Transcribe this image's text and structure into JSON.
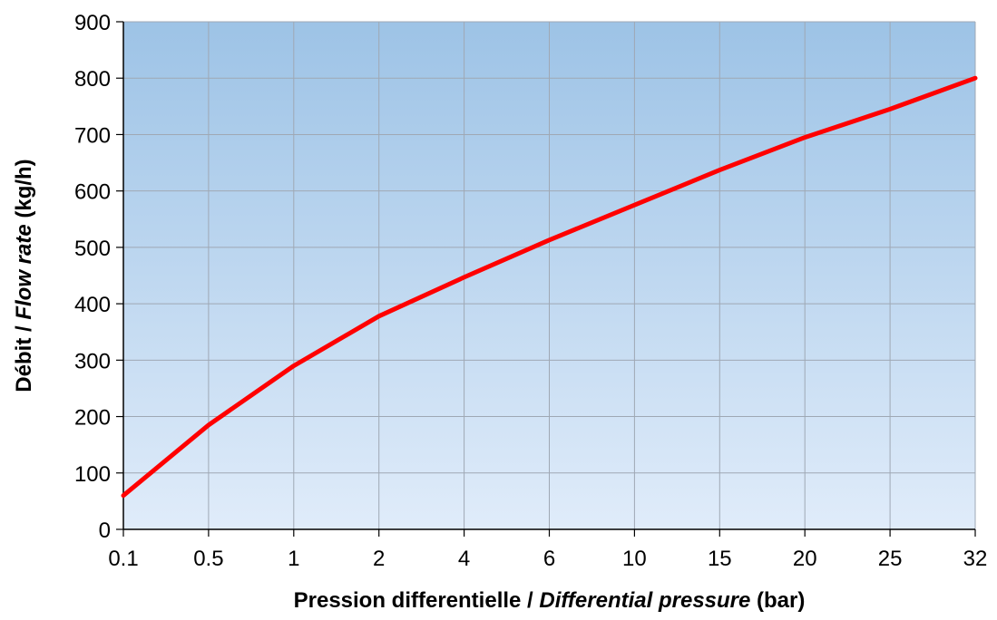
{
  "chart_data": {
    "type": "line",
    "title": "",
    "xlabel": {
      "part1": "Pression differentielle / ",
      "part2": "Differential pressure",
      "part3": " (bar)"
    },
    "ylabel": {
      "part1": "Débit / ",
      "part2": "Flow rate",
      "part3": " (kg/h)"
    },
    "x_scale": "categorical (equally spaced ticks)",
    "categories": [
      "0.1",
      "0.5",
      "1",
      "2",
      "4",
      "6",
      "10",
      "15",
      "20",
      "25",
      "32"
    ],
    "y_ticks": [
      "0",
      "100",
      "200",
      "300",
      "400",
      "500",
      "600",
      "700",
      "800",
      "900"
    ],
    "ylim": [
      0,
      900
    ],
    "grid": true,
    "legend": "none",
    "series": [
      {
        "values": [
          60,
          185,
          290,
          378,
          447,
          513,
          575,
          637,
          695,
          745,
          800
        ],
        "color": "#ff0000"
      }
    ],
    "background_gradient": {
      "top": "#9dc3e6",
      "bottom": "#e0ecfa"
    },
    "grid_color": "#9fa8b4"
  }
}
